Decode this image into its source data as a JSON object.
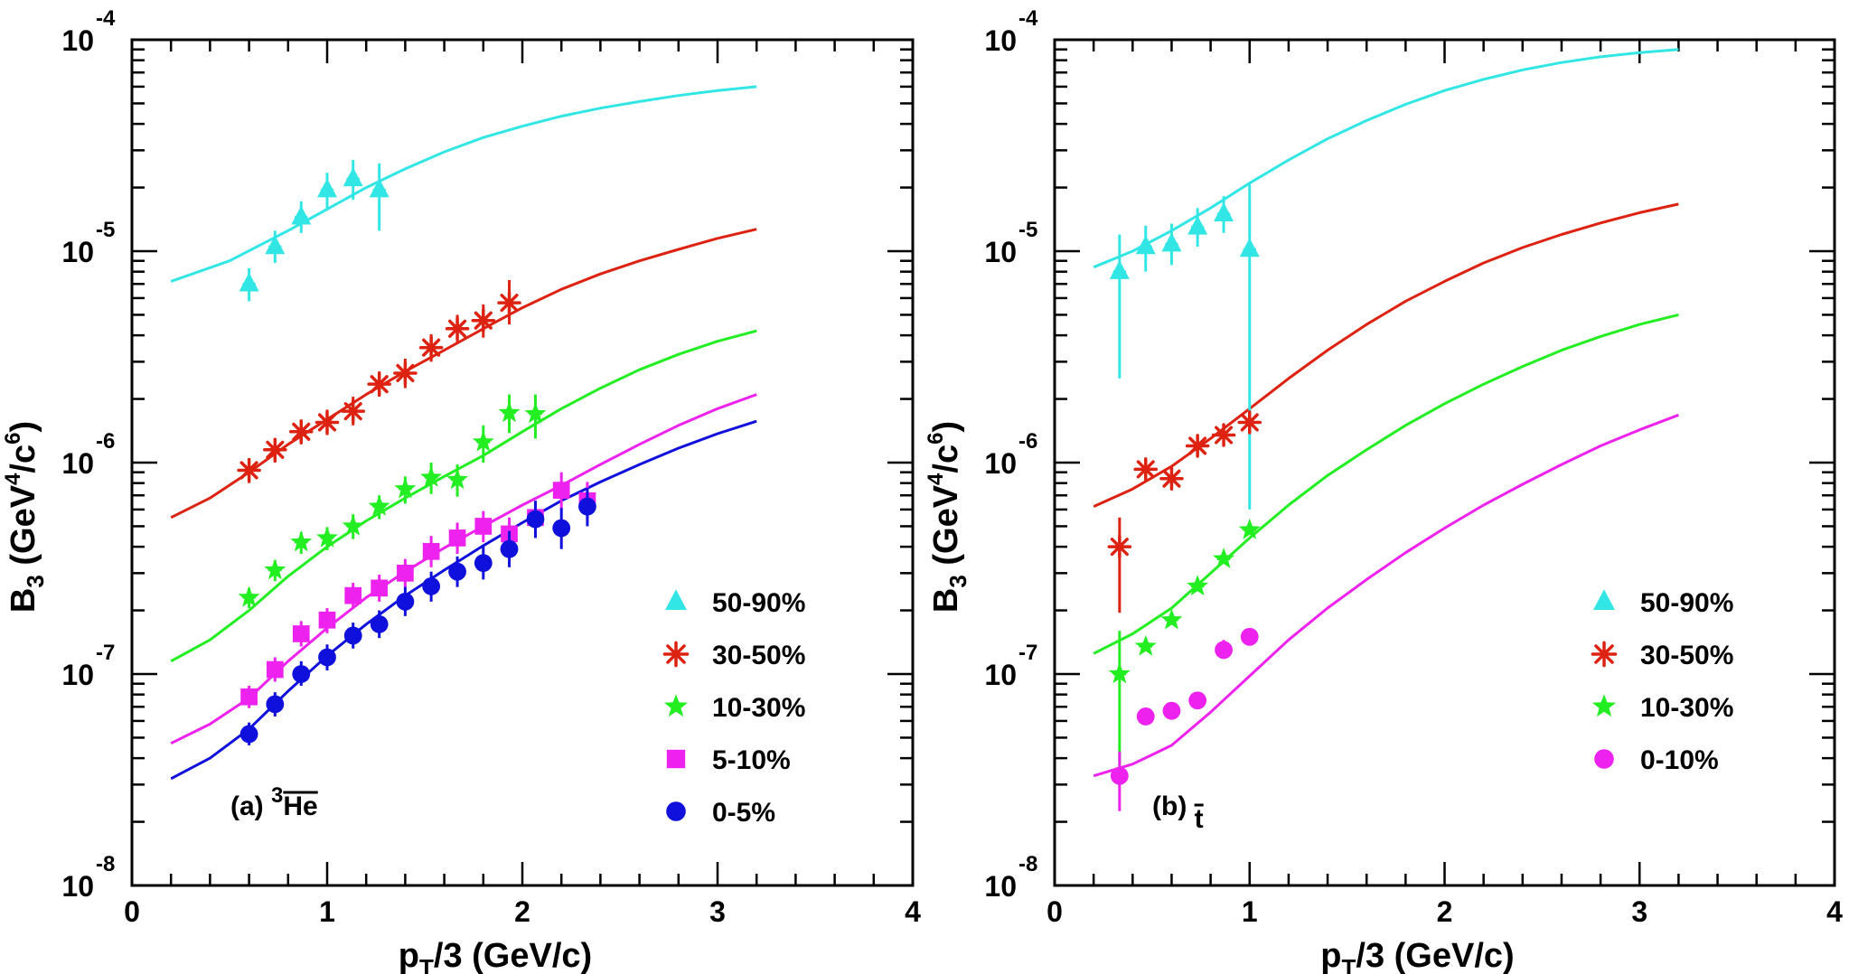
{
  "chart_data": [
    {
      "panel": "a",
      "type": "scatter",
      "annotation": {
        "label": "(a) ",
        "sup": "3",
        "particle": "He"
      },
      "xlabel": "pT/3   (GeV/c)",
      "xlabel_parts": {
        "p": "p",
        "sub": "T",
        "rest": "/3   (GeV/c)"
      },
      "ylabel": "B3  (GeV^4/c^6)",
      "ylabel_parts": {
        "b": "B",
        "sub": "3",
        "open": "  (GeV",
        "sup1": "4",
        "mid": "/c",
        "sup2": "6",
        "close": ")"
      },
      "xlim": [
        0,
        4
      ],
      "ylim": [
        1e-08,
        0.0001
      ],
      "yscale": "log",
      "x_ticks": [
        "0",
        "1",
        "2",
        "3",
        "4"
      ],
      "y_ticks": [
        {
          "base": "10",
          "exp": "-8"
        },
        {
          "base": "10",
          "exp": "-7"
        },
        {
          "base": "10",
          "exp": "-6"
        },
        {
          "base": "10",
          "exp": "-5"
        },
        {
          "base": "10",
          "exp": "-4"
        }
      ],
      "series": [
        {
          "name": "50-90%",
          "color": "#33e6e6",
          "marker": "triangle",
          "x": [
            0.6,
            0.733,
            0.867,
            1.0,
            1.133,
            1.267
          ],
          "y": [
            7e-06,
            1.05e-05,
            1.45e-05,
            1.95e-05,
            2.2e-05,
            1.95e-05
          ],
          "ylo": [
            5.8e-06,
            8.8e-06,
            1.22e-05,
            1.6e-05,
            1.75e-05,
            1.25e-05
          ],
          "yhi": [
            8.3e-06,
            1.25e-05,
            1.72e-05,
            2.35e-05,
            2.7e-05,
            2.6e-05
          ],
          "curve_x": [
            0.2,
            0.5,
            0.8,
            1.0,
            1.2,
            1.4,
            1.6,
            1.8,
            2.0,
            2.2,
            2.4,
            2.6,
            2.8,
            3.0,
            3.2
          ],
          "curve_y": [
            7.2e-06,
            9e-06,
            1.25e-05,
            1.58e-05,
            2e-05,
            2.45e-05,
            2.95e-05,
            3.45e-05,
            3.9e-05,
            4.35e-05,
            4.75e-05,
            5.1e-05,
            5.45e-05,
            5.75e-05,
            6e-05
          ]
        },
        {
          "name": "30-50%",
          "color": "#dd2211",
          "marker": "asterisk",
          "x": [
            0.6,
            0.733,
            0.867,
            1.0,
            1.133,
            1.267,
            1.4,
            1.533,
            1.667,
            1.8,
            1.933
          ],
          "y": [
            9.2e-07,
            1.15e-06,
            1.4e-06,
            1.55e-06,
            1.75e-06,
            2.35e-06,
            2.65e-06,
            3.5e-06,
            4.3e-06,
            4.7e-06,
            5.7e-06
          ],
          "ylo": [
            8e-07,
            1e-06,
            1.22e-06,
            1.35e-06,
            1.5e-06,
            2.05e-06,
            2.25e-06,
            3e-06,
            3.7e-06,
            3.9e-06,
            4.5e-06
          ],
          "yhi": [
            1.05e-06,
            1.3e-06,
            1.6e-06,
            1.78e-06,
            2.05e-06,
            2.7e-06,
            3.1e-06,
            4.05e-06,
            5e-06,
            5.6e-06,
            7.3e-06
          ],
          "curve_x": [
            0.2,
            0.4,
            0.6,
            0.8,
            1.0,
            1.2,
            1.4,
            1.6,
            1.8,
            2.0,
            2.2,
            2.4,
            2.6,
            2.8,
            3.0,
            3.2
          ],
          "curve_y": [
            5.5e-07,
            6.8e-07,
            9e-07,
            1.22e-06,
            1.6e-06,
            2.1e-06,
            2.7e-06,
            3.4e-06,
            4.3e-06,
            5.4e-06,
            6.6e-06,
            7.8e-06,
            9e-06,
            1.02e-05,
            1.15e-05,
            1.27e-05
          ]
        },
        {
          "name": "10-30%",
          "color": "#22ee22",
          "marker": "star",
          "x": [
            0.6,
            0.733,
            0.867,
            1.0,
            1.133,
            1.267,
            1.4,
            1.533,
            1.667,
            1.8,
            1.933,
            2.067
          ],
          "y": [
            2.3e-07,
            3.1e-07,
            4.2e-07,
            4.4e-07,
            5e-07,
            6.2e-07,
            7.5e-07,
            8.5e-07,
            8.3e-07,
            1.25e-06,
            1.72e-06,
            1.7e-06
          ],
          "ylo": [
            2.05e-07,
            2.75e-07,
            3.7e-07,
            3.85e-07,
            4.35e-07,
            5.4e-07,
            6.4e-07,
            7.1e-07,
            6.9e-07,
            1e-06,
            1.38e-06,
            1.3e-06
          ],
          "yhi": [
            2.55e-07,
            3.45e-07,
            4.7e-07,
            4.95e-07,
            5.7e-07,
            7e-07,
            8.6e-07,
            1e-06,
            9.8e-07,
            1.5e-06,
            2.1e-06,
            2.1e-06
          ],
          "curve_x": [
            0.2,
            0.4,
            0.6,
            0.8,
            1.0,
            1.2,
            1.4,
            1.6,
            1.8,
            2.0,
            2.2,
            2.4,
            2.6,
            2.8,
            3.0,
            3.2
          ],
          "curve_y": [
            1.15e-07,
            1.45e-07,
            2e-07,
            2.9e-07,
            4e-07,
            5.3e-07,
            6.8e-07,
            8.6e-07,
            1.08e-06,
            1.4e-06,
            1.8e-06,
            2.25e-06,
            2.75e-06,
            3.25e-06,
            3.75e-06,
            4.2e-06
          ]
        },
        {
          "name": "5-10%",
          "color": "#ee22ee",
          "marker": "square",
          "x": [
            0.6,
            0.733,
            0.867,
            1.0,
            1.133,
            1.267,
            1.4,
            1.533,
            1.667,
            1.8,
            1.933,
            2.067,
            2.2,
            2.333
          ],
          "y": [
            7.8e-08,
            1.05e-07,
            1.55e-07,
            1.8e-07,
            2.35e-07,
            2.55e-07,
            3e-07,
            3.8e-07,
            4.4e-07,
            5e-07,
            4.6e-07,
            5.5e-07,
            7.4e-07,
            6.6e-07
          ],
          "ylo": [
            6.9e-08,
            9.2e-08,
            1.35e-07,
            1.56e-07,
            2.05e-07,
            2.2e-07,
            2.55e-07,
            3.2e-07,
            3.7e-07,
            4.2e-07,
            3.8e-07,
            4.5e-07,
            6e-07,
            5.3e-07
          ],
          "yhi": [
            8.8e-08,
            1.2e-07,
            1.78e-07,
            2.05e-07,
            2.7e-07,
            2.95e-07,
            3.5e-07,
            4.5e-07,
            5.2e-07,
            5.9e-07,
            5.5e-07,
            6.6e-07,
            9e-07,
            8.1e-07
          ],
          "curve_x": [
            0.2,
            0.4,
            0.6,
            0.8,
            1.0,
            1.2,
            1.4,
            1.6,
            1.8,
            2.0,
            2.2,
            2.4,
            2.6,
            2.8,
            3.0,
            3.2
          ],
          "curve_y": [
            4.7e-08,
            5.8e-08,
            7.7e-08,
            1.15e-07,
            1.65e-07,
            2.3e-07,
            3.05e-07,
            3.95e-07,
            5e-07,
            6.3e-07,
            7.8e-07,
            9.8e-07,
            1.22e-06,
            1.5e-06,
            1.8e-06,
            2.1e-06
          ]
        },
        {
          "name": "0-5%",
          "color": "#1010dd",
          "marker": "circle",
          "x": [
            0.6,
            0.733,
            0.867,
            1.0,
            1.133,
            1.267,
            1.4,
            1.533,
            1.667,
            1.8,
            1.933,
            2.067,
            2.2,
            2.333
          ],
          "y": [
            5.2e-08,
            7.2e-08,
            1e-07,
            1.2e-07,
            1.52e-07,
            1.72e-07,
            2.2e-07,
            2.6e-07,
            3.05e-07,
            3.35e-07,
            3.9e-07,
            5.4e-07,
            4.9e-07,
            6.2e-07
          ],
          "ylo": [
            4.6e-08,
            6.3e-08,
            8.8e-08,
            1.04e-07,
            1.32e-07,
            1.48e-07,
            1.88e-07,
            2.2e-07,
            2.58e-07,
            2.8e-07,
            3.2e-07,
            4.4e-07,
            3.9e-07,
            5e-07
          ],
          "yhi": [
            5.9e-08,
            8.2e-08,
            1.15e-07,
            1.38e-07,
            1.75e-07,
            2e-07,
            2.58e-07,
            3.05e-07,
            3.6e-07,
            4e-07,
            4.75e-07,
            6.6e-07,
            6.1e-07,
            7.6e-07
          ],
          "curve_x": [
            0.2,
            0.4,
            0.6,
            0.8,
            1.0,
            1.2,
            1.4,
            1.6,
            1.8,
            2.0,
            2.2,
            2.4,
            2.6,
            2.8,
            3.0,
            3.2
          ],
          "curve_y": [
            3.2e-08,
            4e-08,
            5.5e-08,
            8.3e-08,
            1.22e-07,
            1.72e-07,
            2.35e-07,
            3.1e-07,
            4.05e-07,
            5.2e-07,
            6.6e-07,
            8.1e-07,
            9.8e-07,
            1.17e-06,
            1.37e-06,
            1.57e-06
          ]
        }
      ]
    },
    {
      "panel": "b",
      "type": "scatter",
      "annotation": {
        "label": "(b) ",
        "sup": "",
        "particle": "t"
      },
      "xlabel": "pT/3   (GeV/c)",
      "xlabel_parts": {
        "p": "p",
        "sub": "T",
        "rest": "/3   (GeV/c)"
      },
      "ylabel": "B3  (GeV^4/c^6)",
      "ylabel_parts": {
        "b": "B",
        "sub": "3",
        "open": "  (GeV",
        "sup1": "4",
        "mid": "/c",
        "sup2": "6",
        "close": ")"
      },
      "xlim": [
        0,
        4
      ],
      "ylim": [
        1e-08,
        0.0001
      ],
      "yscale": "log",
      "x_ticks": [
        "0",
        "1",
        "2",
        "3",
        "4"
      ],
      "y_ticks": [
        {
          "base": "10",
          "exp": "-8"
        },
        {
          "base": "10",
          "exp": "-7"
        },
        {
          "base": "10",
          "exp": "-6"
        },
        {
          "base": "10",
          "exp": "-5"
        },
        {
          "base": "10",
          "exp": "-4"
        }
      ],
      "series": [
        {
          "name": "50-90%",
          "color": "#33e6e6",
          "marker": "triangle",
          "x": [
            0.333,
            0.467,
            0.6,
            0.733,
            0.867,
            1.0
          ],
          "y": [
            8e-06,
            1.05e-05,
            1.08e-05,
            1.3e-05,
            1.5e-05,
            1.02e-05
          ],
          "ylo": [
            2.5e-06,
            8e-06,
            8.6e-06,
            1.05e-05,
            1.22e-05,
            6e-07
          ],
          "yhi": [
            1.2e-05,
            1.32e-05,
            1.35e-05,
            1.6e-05,
            1.82e-05,
            2.1e-05
          ],
          "curve_x": [
            0.2,
            0.4,
            0.6,
            0.8,
            1.0,
            1.2,
            1.4,
            1.6,
            1.8,
            2.0,
            2.2,
            2.4,
            2.6,
            2.8,
            3.0,
            3.2
          ],
          "curve_y": [
            8.4e-06,
            1e-05,
            1.25e-05,
            1.6e-05,
            2.1e-05,
            2.7e-05,
            3.4e-05,
            4.15e-05,
            4.95e-05,
            5.75e-05,
            6.5e-05,
            7.2e-05,
            7.8e-05,
            8.3e-05,
            8.7e-05,
            9e-05
          ]
        },
        {
          "name": "30-50%",
          "color": "#dd2211",
          "marker": "asterisk",
          "x": [
            0.333,
            0.467,
            0.6,
            0.733,
            0.867,
            1.0
          ],
          "y": [
            4e-07,
            9.3e-07,
            8.4e-07,
            1.2e-06,
            1.35e-06,
            1.55e-06
          ],
          "ylo": [
            1.95e-07,
            8.4e-07,
            7.7e-07,
            1.1e-06,
            1.23e-06,
            1.42e-06
          ],
          "yhi": [
            5.5e-07,
            1.03e-06,
            9.2e-07,
            1.32e-06,
            1.48e-06,
            1.7e-06
          ],
          "curve_x": [
            0.2,
            0.4,
            0.6,
            0.8,
            1.0,
            1.2,
            1.4,
            1.6,
            1.8,
            2.0,
            2.2,
            2.4,
            2.6,
            2.8,
            3.0,
            3.2
          ],
          "curve_y": [
            6.2e-07,
            7.5e-07,
            9.6e-07,
            1.3e-06,
            1.8e-06,
            2.5e-06,
            3.4e-06,
            4.5e-06,
            5.8e-06,
            7.2e-06,
            8.8e-06,
            1.04e-05,
            1.2e-05,
            1.36e-05,
            1.52e-05,
            1.67e-05
          ]
        },
        {
          "name": "10-30%",
          "color": "#22ee22",
          "marker": "star",
          "x": [
            0.333,
            0.467,
            0.6,
            0.733,
            0.867,
            1.0
          ],
          "y": [
            1e-07,
            1.35e-07,
            1.8e-07,
            2.6e-07,
            3.5e-07,
            4.8e-07
          ],
          "ylo": [
            3.7e-08,
            1.28e-07,
            1.72e-07,
            2.5e-07,
            3.35e-07,
            4.6e-07
          ],
          "yhi": [
            1.6e-07,
            1.42e-07,
            1.88e-07,
            2.7e-07,
            3.65e-07,
            5e-07
          ],
          "curve_x": [
            0.2,
            0.4,
            0.6,
            0.8,
            1.0,
            1.2,
            1.4,
            1.6,
            1.8,
            2.0,
            2.2,
            2.4,
            2.6,
            2.8,
            3.0,
            3.2
          ],
          "curve_y": [
            1.25e-07,
            1.55e-07,
            2.05e-07,
            3e-07,
            4.4e-07,
            6.3e-07,
            8.7e-07,
            1.15e-06,
            1.5e-06,
            1.9e-06,
            2.35e-06,
            2.85e-06,
            3.4e-06,
            3.95e-06,
            4.5e-06,
            5e-06
          ]
        },
        {
          "name": "0-10%",
          "color": "#ee22ee",
          "marker": "circle",
          "x": [
            0.333,
            0.467,
            0.6,
            0.733,
            0.867,
            1.0
          ],
          "y": [
            3.3e-08,
            6.3e-08,
            6.7e-08,
            7.5e-08,
            1.3e-07,
            1.5e-07
          ],
          "ylo": [
            2.25e-08,
            6e-08,
            6.35e-08,
            7.1e-08,
            1.18e-07,
            1.38e-07
          ],
          "yhi": [
            4.3e-08,
            6.6e-08,
            7.1e-08,
            7.9e-08,
            1.45e-07,
            1.63e-07
          ],
          "curve_x": [
            0.2,
            0.4,
            0.6,
            0.8,
            1.0,
            1.2,
            1.4,
            1.6,
            1.8,
            2.0,
            2.2,
            2.4,
            2.6,
            2.8,
            3.0,
            3.2
          ],
          "curve_y": [
            3.3e-08,
            3.75e-08,
            4.6e-08,
            6.6e-08,
            9.8e-08,
            1.45e-07,
            2.05e-07,
            2.8e-07,
            3.75e-07,
            4.9e-07,
            6.3e-07,
            7.9e-07,
            9.8e-07,
            1.2e-06,
            1.43e-06,
            1.68e-06
          ]
        }
      ]
    }
  ]
}
